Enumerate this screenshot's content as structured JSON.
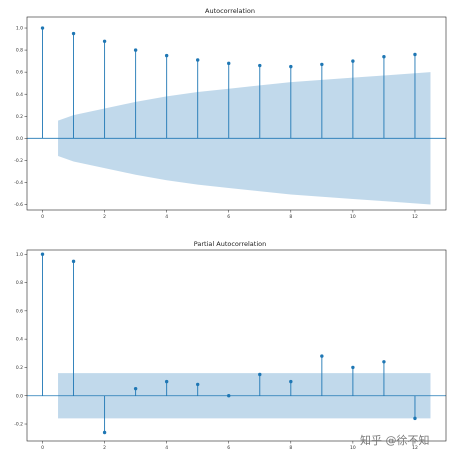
{
  "colors": {
    "stem": "#1f77b4",
    "confidence": "#a6c9e2",
    "zero_line": "#1f77b4"
  },
  "chart_data": [
    {
      "type": "stem",
      "title": "Autocorrelation",
      "x": [
        0,
        1,
        2,
        3,
        4,
        5,
        6,
        7,
        8,
        9,
        10,
        11,
        12
      ],
      "values": [
        1.0,
        0.95,
        0.88,
        0.8,
        0.75,
        0.71,
        0.68,
        0.66,
        0.65,
        0.67,
        0.7,
        0.74,
        0.76
      ],
      "confidence_band": {
        "x": [
          0.5,
          1,
          2,
          3,
          4,
          5,
          6,
          7,
          8,
          9,
          10,
          11,
          12,
          12.5
        ],
        "upper": [
          0.16,
          0.21,
          0.27,
          0.33,
          0.38,
          0.42,
          0.45,
          0.48,
          0.51,
          0.53,
          0.55,
          0.57,
          0.59,
          0.6
        ],
        "lower": [
          -0.16,
          -0.21,
          -0.27,
          -0.33,
          -0.38,
          -0.42,
          -0.45,
          -0.48,
          -0.51,
          -0.53,
          -0.55,
          -0.57,
          -0.59,
          -0.6
        ]
      },
      "xlim": [
        -0.5,
        13
      ],
      "ylim": [
        -0.65,
        1.1
      ],
      "xticks": [
        0,
        2,
        4,
        6,
        8,
        10,
        12
      ],
      "yticks": [
        -0.6,
        -0.4,
        -0.2,
        0.0,
        0.2,
        0.4,
        0.6,
        0.8,
        1.0
      ],
      "grid": false
    },
    {
      "type": "stem",
      "title": "Partial Autocorrelation",
      "x": [
        0,
        1,
        2,
        3,
        4,
        5,
        6,
        7,
        8,
        9,
        10,
        11,
        12
      ],
      "values": [
        1.0,
        0.95,
        -0.26,
        0.05,
        0.1,
        0.08,
        0.0,
        0.15,
        0.1,
        0.28,
        0.2,
        0.24,
        -0.16
      ],
      "confidence_band": {
        "x": [
          0.5,
          12.5
        ],
        "upper": [
          0.16,
          0.16
        ],
        "lower": [
          -0.16,
          -0.16
        ]
      },
      "xlim": [
        -0.5,
        13
      ],
      "ylim": [
        -0.32,
        1.03
      ],
      "xticks": [
        0,
        2,
        4,
        6,
        8,
        10,
        12
      ],
      "yticks": [
        -0.2,
        0.0,
        0.2,
        0.4,
        0.6,
        0.8,
        1.0
      ],
      "grid": false
    }
  ],
  "watermark": "知乎 @徐不知"
}
